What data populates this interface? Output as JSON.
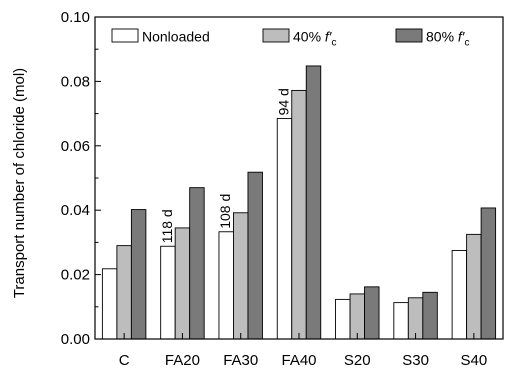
{
  "chart_data": {
    "type": "bar",
    "categories": [
      "C",
      "FA20",
      "FA30",
      "FA40",
      "S20",
      "S30",
      "S40"
    ],
    "series": [
      {
        "name": "Nonloaded",
        "color": "#ffffff",
        "values": [
          0.0218,
          0.0288,
          0.0333,
          0.0685,
          0.0123,
          0.0113,
          0.0275
        ]
      },
      {
        "name": "40% f′c",
        "color": "#bdbdbd",
        "values": [
          0.029,
          0.0345,
          0.0392,
          0.0772,
          0.014,
          0.0128,
          0.0325
        ]
      },
      {
        "name": "80% f′c",
        "color": "#7a7a7a",
        "values": [
          0.0402,
          0.047,
          0.0518,
          0.0848,
          0.0162,
          0.0145,
          0.0407
        ]
      }
    ],
    "legend": [
      {
        "label": "Nonloaded",
        "base": "Nonloaded",
        "suffix": ""
      },
      {
        "label": "40% f′c",
        "base": "40% ",
        "italic": "f′",
        "sub": "c"
      },
      {
        "label": "80% f′c",
        "base": "80% ",
        "italic": "f′",
        "sub": "c"
      }
    ],
    "ylabel": "Transport number of chloride (mol)",
    "xlabel": "",
    "ylim": [
      0,
      0.1
    ],
    "yticks": [
      "0.00",
      "0.02",
      "0.04",
      "0.06",
      "0.08",
      "0.10"
    ],
    "legend_position": "top",
    "grid": false,
    "annotations": [
      {
        "category": "FA20",
        "series": 0,
        "text": "118 d",
        "value": 0.0092
      },
      {
        "category": "FA30",
        "series": 0,
        "text": "108 d",
        "value": 0.0143
      },
      {
        "category": "FA40",
        "series": 0,
        "text": "94 d",
        "value": 0.0248
      }
    ]
  }
}
